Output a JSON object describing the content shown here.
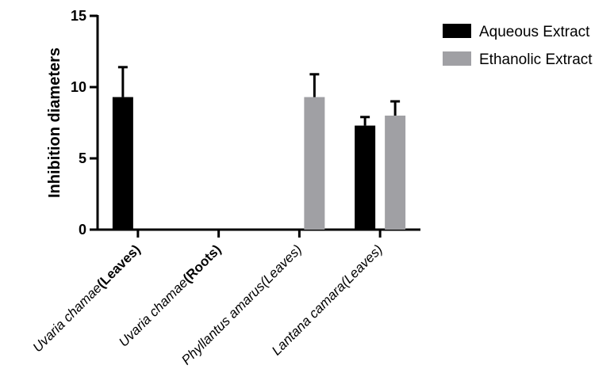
{
  "chart_data": {
    "type": "bar",
    "title": "",
    "xlabel": "",
    "ylabel": "Inhibition diameters",
    "ylim": [
      0,
      15
    ],
    "yticks": [
      0,
      5,
      10,
      15
    ],
    "categories": [
      [
        {
          "t": "Uvaria chamae",
          "s": "italic"
        },
        {
          "t": "(Leaves)",
          "s": "bold"
        }
      ],
      [
        {
          "t": "Uvaria chamae",
          "s": "italic"
        },
        {
          "t": "(Roots)",
          "s": "bold"
        }
      ],
      [
        {
          "t": "Phyllantus amarus(Leaves)",
          "s": "italic"
        }
      ],
      [
        {
          "t": "Lantana camara(Leaves)",
          "s": "italic"
        }
      ]
    ],
    "series": [
      {
        "name": "Aqueous Extract",
        "color": "#000000",
        "values": [
          9.3,
          0,
          0,
          7.3
        ],
        "errors": [
          2.1,
          0,
          0,
          0.6
        ]
      },
      {
        "name": "Ethanolic Extract",
        "color": "#a0a0a4",
        "values": [
          0,
          0,
          9.3,
          8.0
        ],
        "errors": [
          0,
          0,
          1.6,
          1.0
        ]
      }
    ],
    "legend_position": "top-right",
    "grid": false
  }
}
